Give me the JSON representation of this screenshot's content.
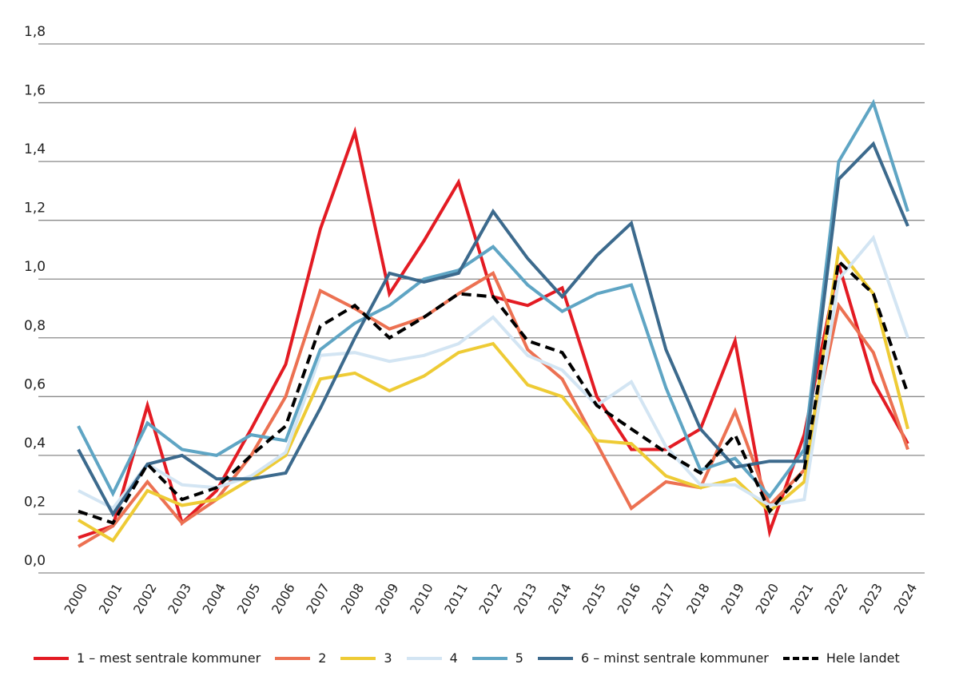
{
  "chart_data": {
    "type": "line",
    "title": "",
    "xlabel": "",
    "ylabel": "",
    "ylim": [
      0,
      1.8
    ],
    "yticks": [
      "0,0",
      "0,2",
      "0,4",
      "0,6",
      "0,8",
      "1,0",
      "1,2",
      "1,4",
      "1,6",
      "1,8"
    ],
    "grid": true,
    "legend_position": "bottom",
    "x": [
      "2000",
      "2001",
      "2002",
      "2003",
      "2004",
      "2005",
      "2006",
      "2007",
      "2008",
      "2009",
      "2010",
      "2011",
      "2012",
      "2013",
      "2014",
      "2015",
      "2016",
      "2017",
      "2018",
      "2019",
      "2020",
      "2021",
      "2022",
      "2023",
      "2024"
    ],
    "series": [
      {
        "name": "1 – mest sentrale kommuner",
        "color": "#e31b23",
        "dashed": false,
        "values": [
          0.12,
          0.16,
          0.57,
          0.17,
          0.28,
          0.49,
          0.71,
          1.17,
          1.5,
          0.95,
          1.13,
          1.33,
          0.94,
          0.91,
          0.97,
          0.6,
          0.42,
          0.42,
          0.49,
          0.79,
          0.14,
          0.47,
          1.05,
          0.65,
          0.44
        ]
      },
      {
        "name": "2",
        "color": "#ec7152",
        "dashed": false,
        "values": [
          0.09,
          0.16,
          0.31,
          0.17,
          0.25,
          0.4,
          0.6,
          0.96,
          0.9,
          0.83,
          0.87,
          0.95,
          1.02,
          0.76,
          0.66,
          0.44,
          0.22,
          0.31,
          0.29,
          0.55,
          0.23,
          0.35,
          0.91,
          0.75,
          0.42
        ]
      },
      {
        "name": "3",
        "color": "#eecb35",
        "dashed": false,
        "values": [
          0.18,
          0.11,
          0.28,
          0.23,
          0.25,
          0.32,
          0.4,
          0.66,
          0.68,
          0.62,
          0.67,
          0.75,
          0.78,
          0.64,
          0.6,
          0.45,
          0.44,
          0.33,
          0.29,
          0.32,
          0.21,
          0.31,
          1.1,
          0.95,
          0.49
        ]
      },
      {
        "name": "4",
        "color": "#d3e5f3",
        "dashed": false,
        "values": [
          0.28,
          0.22,
          0.37,
          0.3,
          0.29,
          0.33,
          0.41,
          0.74,
          0.75,
          0.72,
          0.74,
          0.78,
          0.87,
          0.74,
          0.69,
          0.57,
          0.65,
          0.43,
          0.3,
          0.3,
          0.23,
          0.25,
          1.0,
          1.14,
          0.8
        ]
      },
      {
        "name": "5",
        "color": "#5fa5c4",
        "dashed": false,
        "values": [
          0.5,
          0.27,
          0.51,
          0.42,
          0.4,
          0.47,
          0.45,
          0.76,
          0.85,
          0.91,
          1.0,
          1.03,
          1.11,
          0.98,
          0.89,
          0.95,
          0.98,
          0.63,
          0.35,
          0.39,
          0.26,
          0.42,
          1.4,
          1.6,
          1.23
        ]
      },
      {
        "name": "6 – minst sentrale kommuner",
        "color": "#3c6a8d",
        "dashed": false,
        "values": [
          0.42,
          0.2,
          0.37,
          0.4,
          0.32,
          0.32,
          0.34,
          0.56,
          0.8,
          1.02,
          0.99,
          1.02,
          1.23,
          1.07,
          0.94,
          1.08,
          1.19,
          0.76,
          0.49,
          0.36,
          0.38,
          0.38,
          1.34,
          1.46,
          1.18
        ]
      },
      {
        "name": "Hele landet",
        "color": "#000000",
        "dashed": true,
        "values": [
          0.21,
          0.17,
          0.37,
          0.25,
          0.29,
          0.4,
          0.5,
          0.84,
          0.91,
          0.8,
          0.87,
          0.95,
          0.94,
          0.79,
          0.75,
          0.57,
          0.49,
          0.41,
          0.34,
          0.47,
          0.21,
          0.35,
          1.06,
          0.95,
          0.61
        ]
      }
    ]
  }
}
